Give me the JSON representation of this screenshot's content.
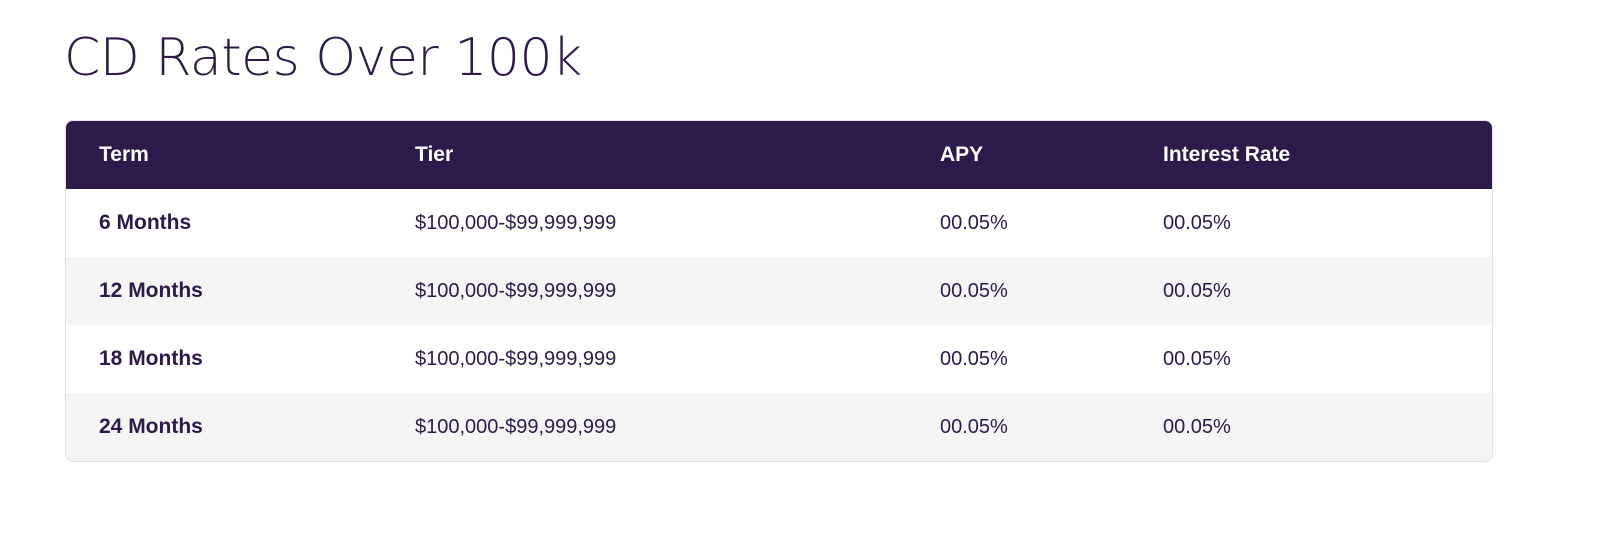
{
  "title": "CD Rates Over 100k",
  "table": {
    "headers": {
      "term": "Term",
      "tier": "Tier",
      "apy": "APY",
      "interest_rate": "Interest Rate"
    },
    "rows": [
      {
        "term": "6 Months",
        "tier": "$100,000-$99,999,999",
        "apy": "00.05%",
        "interest_rate": "00.05%"
      },
      {
        "term": "12 Months",
        "tier": "$100,000-$99,999,999",
        "apy": "00.05%",
        "interest_rate": "00.05%"
      },
      {
        "term": "18 Months",
        "tier": "$100,000-$99,999,999",
        "apy": "00.05%",
        "interest_rate": "00.05%"
      },
      {
        "term": "24 Months",
        "tier": "$100,000-$99,999,999",
        "apy": "00.05%",
        "interest_rate": "00.05%"
      }
    ]
  },
  "colors": {
    "header_background": "#2e1a4a",
    "text": "#2e1a47",
    "striped_row": "#f5f5f6"
  }
}
